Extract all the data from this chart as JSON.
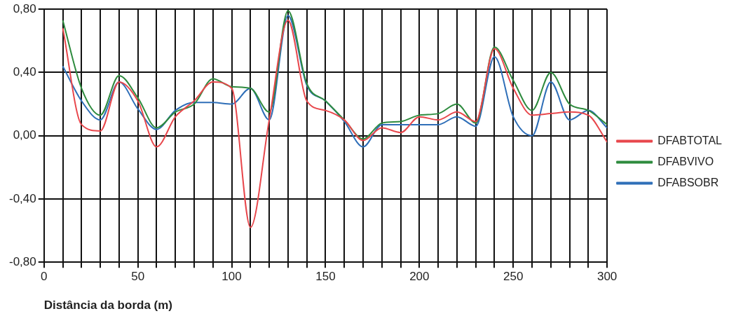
{
  "chart_data": {
    "type": "line",
    "xlabel": "Distância da borda (m)",
    "x": [
      10,
      20,
      30,
      40,
      50,
      60,
      70,
      80,
      90,
      100,
      110,
      120,
      130,
      140,
      150,
      160,
      170,
      180,
      190,
      200,
      210,
      220,
      230,
      240,
      250,
      260,
      270,
      280,
      290,
      300
    ],
    "series": [
      {
        "name": "DFABTOTAL",
        "color": "#e8474c",
        "values": [
          0.68,
          0.07,
          0.03,
          0.34,
          0.22,
          -0.07,
          0.12,
          0.22,
          0.34,
          0.3,
          -0.58,
          0.1,
          0.73,
          0.22,
          0.16,
          0.1,
          -0.03,
          0.05,
          0.02,
          0.12,
          0.1,
          0.15,
          0.09,
          0.55,
          0.3,
          0.13,
          0.14,
          0.15,
          0.13,
          -0.04
        ]
      },
      {
        "name": "DFABVIVO",
        "color": "#2e8b3e",
        "values": [
          0.73,
          0.3,
          0.13,
          0.38,
          0.24,
          0.05,
          0.15,
          0.2,
          0.36,
          0.31,
          0.3,
          0.15,
          0.79,
          0.33,
          0.22,
          0.1,
          -0.02,
          0.08,
          0.09,
          0.13,
          0.14,
          0.2,
          0.08,
          0.56,
          0.35,
          0.16,
          0.4,
          0.2,
          0.16,
          0.07
        ]
      },
      {
        "name": "DFABSOBR",
        "color": "#2f6fb8",
        "values": [
          0.44,
          0.22,
          0.1,
          0.34,
          0.17,
          0.04,
          0.16,
          0.21,
          0.21,
          0.2,
          0.3,
          0.1,
          0.76,
          0.32,
          0.22,
          0.09,
          -0.07,
          0.07,
          0.07,
          0.07,
          0.07,
          0.12,
          0.06,
          0.5,
          0.12,
          0.0,
          0.34,
          0.1,
          0.16,
          0.05
        ]
      }
    ],
    "xlim": [
      0,
      300
    ],
    "xticks": [
      0,
      {
        "value": 10,
        "label": null
      },
      {
        "value": 20,
        "label": null
      },
      {
        "value": 30,
        "label": null
      },
      {
        "value": 40,
        "label": null
      },
      50,
      {
        "value": 60,
        "label": null
      },
      {
        "value": 70,
        "label": null
      },
      {
        "value": 80,
        "label": null
      },
      {
        "value": 90,
        "label": null
      },
      100,
      {
        "value": 110,
        "label": null
      },
      {
        "value": 120,
        "label": null
      },
      {
        "value": 130,
        "label": null
      },
      {
        "value": 140,
        "label": null
      },
      150,
      {
        "value": 160,
        "label": null
      },
      {
        "value": 170,
        "label": null
      },
      {
        "value": 180,
        "label": null
      },
      {
        "value": 190,
        "label": null
      },
      200,
      {
        "value": 210,
        "label": null
      },
      {
        "value": 220,
        "label": null
      },
      {
        "value": 230,
        "label": null
      },
      {
        "value": 240,
        "label": null
      },
      250,
      {
        "value": 260,
        "label": null
      },
      {
        "value": 270,
        "label": null
      },
      {
        "value": 280,
        "label": null
      },
      {
        "value": 290,
        "label": null
      },
      300
    ],
    "ylim": [
      -0.8,
      0.8
    ],
    "yticks": [
      {
        "value": -0.8,
        "label": "-0,80"
      },
      {
        "value": -0.4,
        "label": "-0,40"
      },
      {
        "value": 0,
        "label": "0,00"
      },
      {
        "value": 0.4,
        "label": "0,40"
      },
      {
        "value": 0.8,
        "label": "0,80"
      }
    ],
    "grid": true,
    "legend": "right",
    "marker": "none",
    "line_style": "solid"
  }
}
